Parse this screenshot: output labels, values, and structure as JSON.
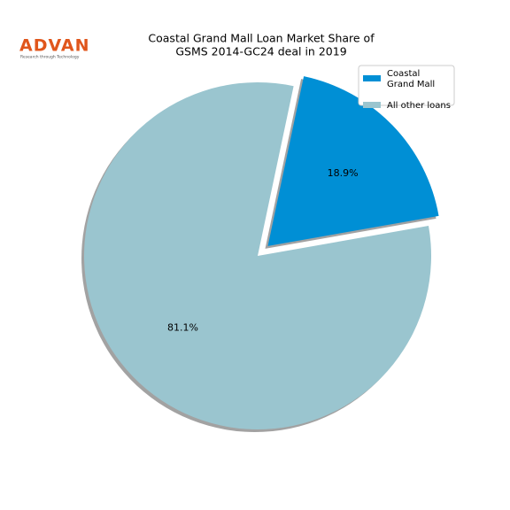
{
  "logo": {
    "name": "ADVAN",
    "tagline": "Research through Technology"
  },
  "chart_data": {
    "type": "pie",
    "title": "Coastal Grand Mall Loan Market Share of\nGSMS 2014-GC24 deal in 2019",
    "categories": [
      "Coastal\nGrand Mall",
      "All other loans"
    ],
    "values": [
      18.9,
      81.1
    ],
    "value_labels": [
      "18.9%",
      "81.1%"
    ],
    "colors": [
      "#008fd5",
      "#9ac5cf"
    ],
    "explode": [
      true,
      false
    ],
    "shadow": true,
    "legend": "upper right"
  }
}
